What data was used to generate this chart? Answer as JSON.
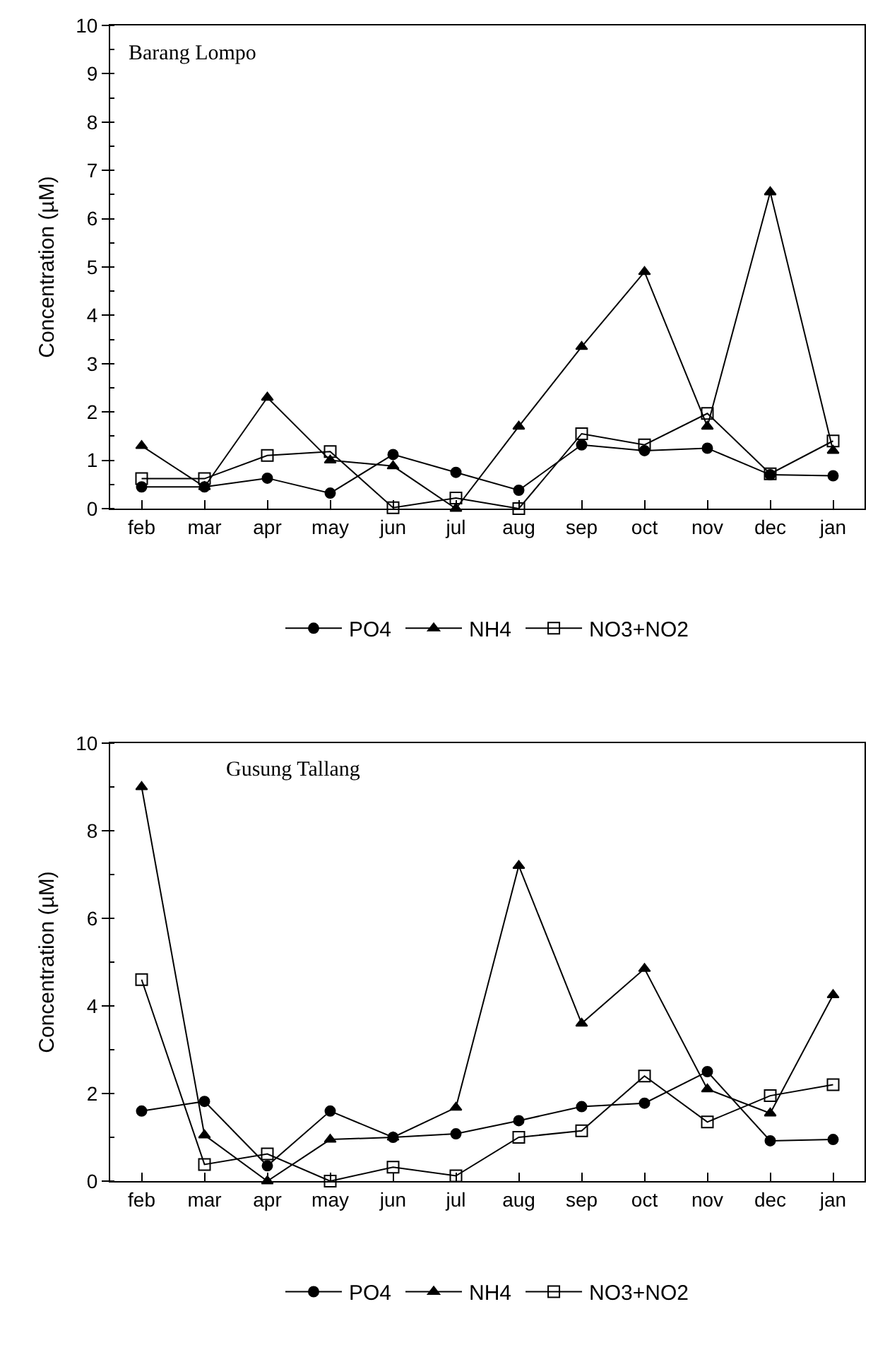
{
  "chart_data": [
    {
      "type": "line",
      "title": "Barang Lompo",
      "ylabel": "Concentration (µM)",
      "categories": [
        "feb",
        "mar",
        "apr",
        "may",
        "jun",
        "jul",
        "aug",
        "sep",
        "oct",
        "nov",
        "dec",
        "jan"
      ],
      "series": [
        {
          "name": "PO4",
          "color": "#000000",
          "marker": "circle",
          "values": [
            0.45,
            0.45,
            0.63,
            0.32,
            1.12,
            0.75,
            0.38,
            1.32,
            1.2,
            1.25,
            0.7,
            0.68
          ]
        },
        {
          "name": "NH4",
          "color": "#000000",
          "marker": "triangle",
          "values": [
            1.3,
            0.45,
            2.3,
            1.0,
            0.88,
            0,
            1.7,
            3.35,
            4.9,
            1.7,
            6.55,
            1.2
          ]
        },
        {
          "name": "NO3+NO2",
          "color": "#000000",
          "marker": "square",
          "values": [
            0.62,
            0.62,
            1.1,
            1.18,
            0.02,
            0.22,
            0,
            1.55,
            1.32,
            1.97,
            0.72,
            1.4
          ]
        }
      ],
      "ylim": [
        0,
        10
      ],
      "yticks": [
        0,
        1,
        2,
        3,
        4,
        5,
        6,
        7,
        8,
        9,
        10
      ],
      "grid": false,
      "legend": "bottom",
      "line_style": "solid"
    },
    {
      "type": "line",
      "title": "Gusung Tallang",
      "ylabel": "Concentration (µM)",
      "categories": [
        "feb",
        "mar",
        "apr",
        "may",
        "jun",
        "jul",
        "aug",
        "sep",
        "oct",
        "nov",
        "dec",
        "jan"
      ],
      "series": [
        {
          "name": "PO4",
          "color": "#000000",
          "marker": "circle",
          "values": [
            1.6,
            1.82,
            0.35,
            1.6,
            1.0,
            1.08,
            1.38,
            1.7,
            1.78,
            2.5,
            0.92,
            0.95
          ]
        },
        {
          "name": "NH4",
          "color": "#000000",
          "marker": "triangle",
          "values": [
            9.0,
            1.05,
            0,
            0.95,
            1.0,
            1.68,
            7.2,
            3.6,
            4.85,
            2.1,
            1.55,
            4.25
          ]
        },
        {
          "name": "NO3+NO2",
          "color": "#000000",
          "marker": "square",
          "values": [
            4.6,
            0.38,
            0.62,
            0,
            0.32,
            0.12,
            1.0,
            1.15,
            2.4,
            1.35,
            1.95,
            2.2
          ]
        }
      ],
      "ylim": [
        0,
        10
      ],
      "yticks": [
        0,
        2,
        4,
        6,
        8,
        10
      ],
      "grid": false,
      "legend": "bottom",
      "line_style": "solid"
    }
  ]
}
